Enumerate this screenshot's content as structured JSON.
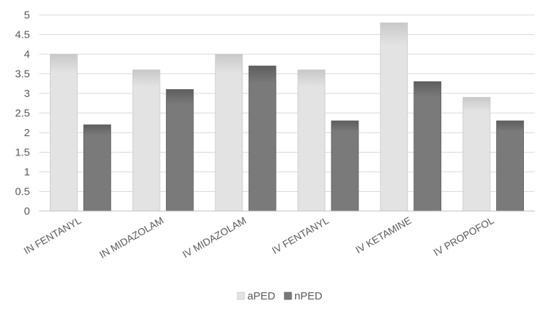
{
  "chart_data": {
    "type": "bar",
    "title": "",
    "xlabel": "",
    "ylabel": "",
    "categories": [
      "IN FENTANYL",
      "IN MIDAZOLAM",
      "IV MIDAZOLAM",
      "IV FENTANYL",
      "IV KETAMINE",
      "IV PROPOFOL"
    ],
    "series": [
      {
        "name": "aPED",
        "values": [
          4.0,
          3.6,
          4.0,
          3.6,
          4.8,
          2.9
        ],
        "color": "#e3e3e3",
        "color_dark": "#c8c8c8"
      },
      {
        "name": "nPED",
        "values": [
          2.2,
          3.1,
          3.7,
          2.3,
          3.3,
          2.3
        ],
        "color": "#7a7a7a",
        "color_dark": "#5e5e5e"
      }
    ],
    "ylim": [
      0,
      5
    ],
    "yticks": [
      "0",
      "0.5",
      "1",
      "1.5",
      "2",
      "2.5",
      "3",
      "3.5",
      "4",
      "4.5",
      "5"
    ],
    "grid": true,
    "legend": "bottom-center"
  }
}
